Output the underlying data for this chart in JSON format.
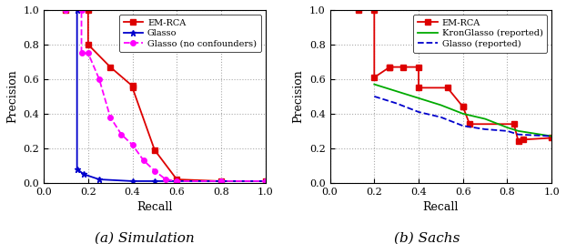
{
  "sim": {
    "em_rca": {
      "recall": [
        0.1,
        0.2,
        0.2,
        0.3,
        0.4,
        0.4,
        0.5,
        0.6,
        0.8,
        1.0
      ],
      "precision": [
        1.0,
        1.0,
        0.8,
        0.67,
        0.56,
        0.55,
        0.19,
        0.02,
        0.01,
        0.01
      ],
      "color": "#dd0000",
      "linestyle": "-",
      "marker": "s",
      "markersize": 4,
      "label": "EM-RCA"
    },
    "glasso": {
      "recall": [
        0.15,
        0.15,
        0.18,
        0.25,
        0.4,
        0.5,
        0.6,
        0.8,
        1.0
      ],
      "precision": [
        1.0,
        0.08,
        0.05,
        0.02,
        0.01,
        0.01,
        0.01,
        0.01,
        0.01
      ],
      "color": "#0000cc",
      "linestyle": "-",
      "marker": "*",
      "markersize": 5,
      "label": "Glasso"
    },
    "glasso_nc": {
      "recall": [
        0.1,
        0.17,
        0.17,
        0.2,
        0.25,
        0.3,
        0.35,
        0.4,
        0.45,
        0.5,
        0.55,
        0.6,
        0.8,
        1.0
      ],
      "precision": [
        1.0,
        1.0,
        0.75,
        0.75,
        0.6,
        0.38,
        0.28,
        0.22,
        0.13,
        0.07,
        0.02,
        0.01,
        0.01,
        0.01
      ],
      "color": "#ff00ff",
      "linestyle": "--",
      "marker": "o",
      "markersize": 4,
      "label": "Glasso (no confounders)"
    }
  },
  "sachs": {
    "em_rca": {
      "recall": [
        0.13,
        0.2,
        0.2,
        0.27,
        0.27,
        0.33,
        0.4,
        0.4,
        0.53,
        0.6,
        0.6,
        0.63,
        0.83,
        0.85,
        0.87,
        1.0
      ],
      "precision": [
        1.0,
        1.0,
        0.61,
        0.67,
        0.67,
        0.67,
        0.67,
        0.55,
        0.55,
        0.44,
        0.44,
        0.34,
        0.34,
        0.24,
        0.25,
        0.26
      ],
      "color": "#dd0000",
      "linestyle": "-",
      "marker": "s",
      "markersize": 4,
      "label": "EM-RCA"
    },
    "kronglasso": {
      "recall": [
        0.2,
        0.3,
        0.4,
        0.5,
        0.6,
        0.7,
        0.8,
        0.85,
        1.0
      ],
      "precision": [
        0.57,
        0.53,
        0.49,
        0.45,
        0.4,
        0.37,
        0.32,
        0.3,
        0.27
      ],
      "color": "#00aa00",
      "linestyle": "-",
      "marker": null,
      "markersize": 0,
      "label": "KronGlasso (reported)"
    },
    "glasso_r": {
      "recall": [
        0.2,
        0.3,
        0.4,
        0.5,
        0.6,
        0.7,
        0.8,
        0.85,
        1.0
      ],
      "precision": [
        0.5,
        0.46,
        0.41,
        0.38,
        0.33,
        0.31,
        0.3,
        0.28,
        0.27
      ],
      "color": "#0000cc",
      "linestyle": "--",
      "marker": null,
      "markersize": 0,
      "label": "Glasso (reported)"
    }
  },
  "xlabel": "Recall",
  "ylabel": "Precision",
  "sim_caption": "(a) Simulation",
  "sachs_caption": "(b) Sachs",
  "background": "#ffffff",
  "grid_color": "#aaaaaa"
}
